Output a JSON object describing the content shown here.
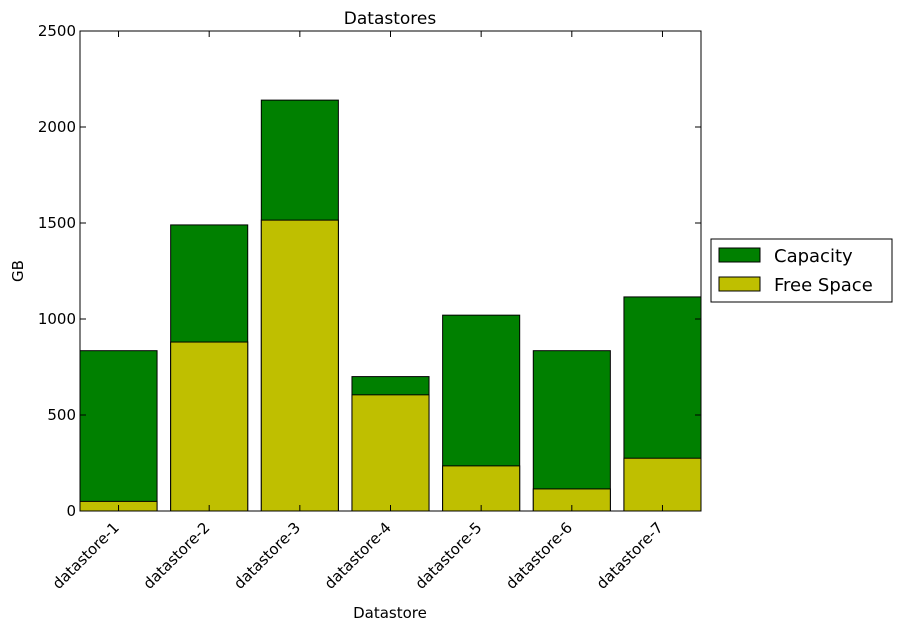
{
  "chart_data": {
    "type": "bar",
    "title": "Datastores",
    "xlabel": "Datastore",
    "ylabel": "GB",
    "ylim": [
      0,
      2500
    ],
    "yticks": [
      0,
      500,
      1000,
      1500,
      2000,
      2500
    ],
    "categories": [
      "datastore-1",
      "datastore-2",
      "datastore-3",
      "datastore-4",
      "datastore-5",
      "datastore-6",
      "datastore-7"
    ],
    "series": [
      {
        "name": "Capacity",
        "color": "#008000",
        "values": [
          835,
          1490,
          2140,
          700,
          1020,
          835,
          1115
        ]
      },
      {
        "name": "Free Space",
        "color": "#bfbf00",
        "values": [
          50,
          880,
          1515,
          605,
          235,
          115,
          275
        ]
      }
    ],
    "overlay": true,
    "grid": false,
    "legend_position": "outside-right"
  }
}
